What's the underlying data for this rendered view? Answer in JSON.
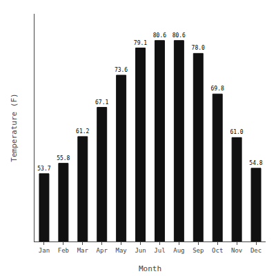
{
  "chart_data": {
    "type": "bar",
    "categories": [
      "Jan",
      "Feb",
      "Mar",
      "Apr",
      "May",
      "Jun",
      "Jul",
      "Aug",
      "Sep",
      "Oct",
      "Nov",
      "Dec"
    ],
    "values": [
      53.7,
      55.8,
      61.2,
      67.1,
      73.6,
      79.1,
      80.6,
      80.6,
      78.0,
      69.8,
      61.0,
      54.8
    ],
    "value_labels": [
      "53.7",
      "55.8",
      "61.2",
      "67.1",
      "73.6",
      "79.1",
      "80.6",
      "80.6",
      "78.0",
      "69.8",
      "61.0",
      "54.8"
    ],
    "color": "#111111",
    "x_label": "Month",
    "y_label": "Temperature (F)",
    "ylim": [
      40,
      86
    ],
    "tick_labels": "x",
    "data_labels": true,
    "grid": false
  }
}
